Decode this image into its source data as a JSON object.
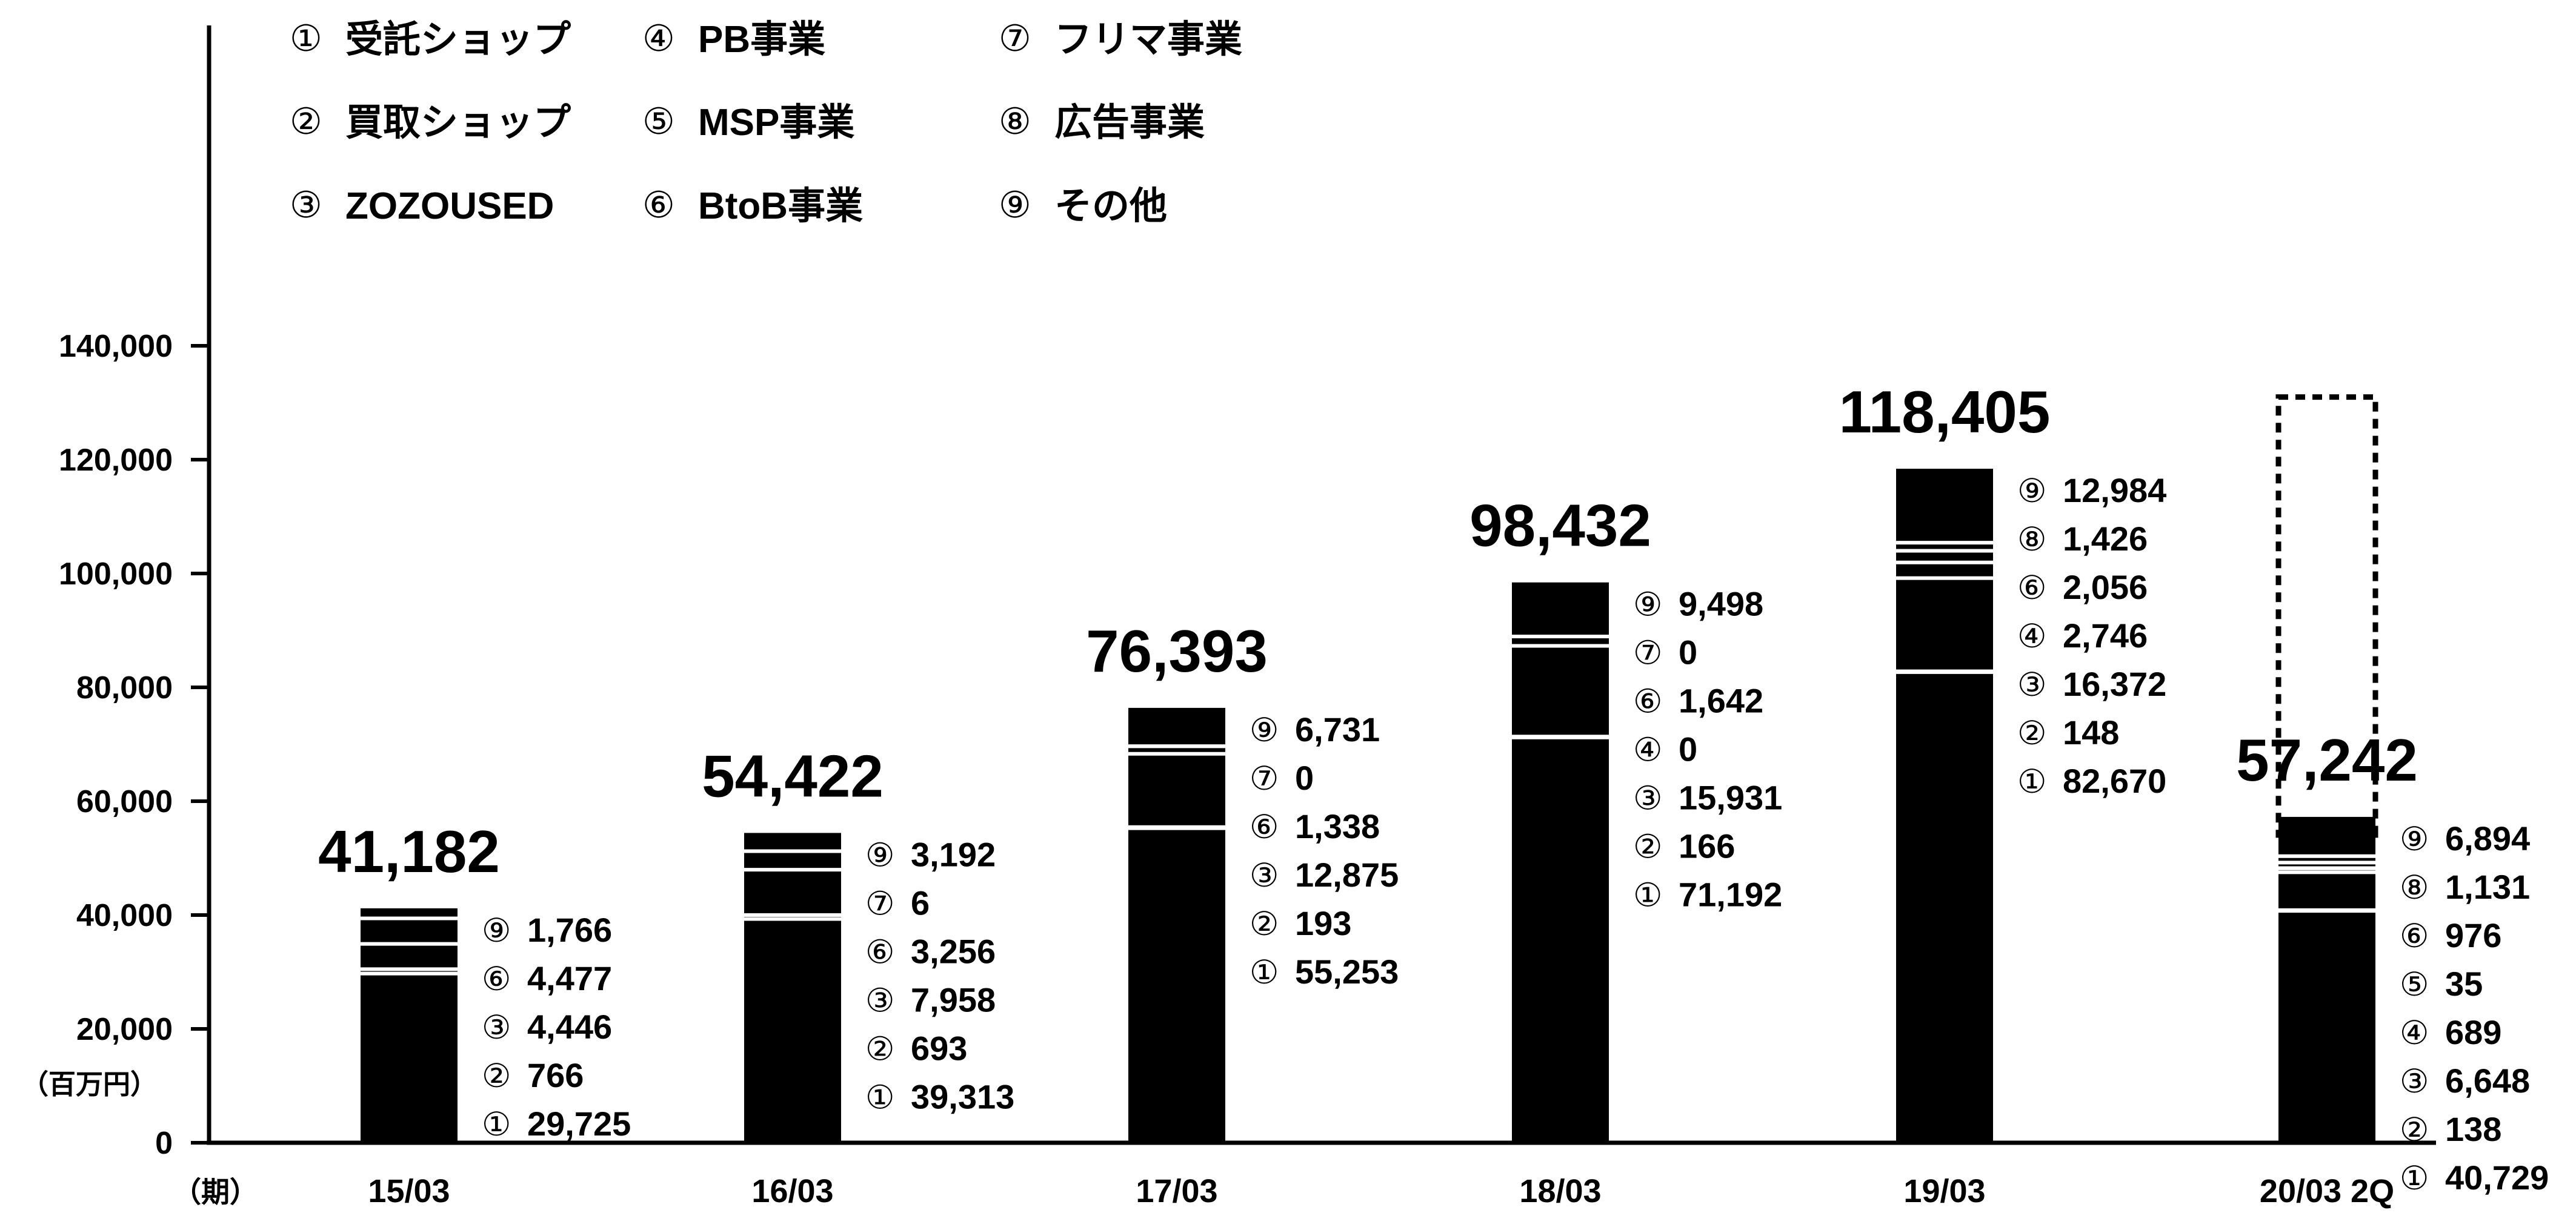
{
  "chart_data": {
    "type": "bar",
    "stacked": true,
    "unit_label": "（百万円）",
    "x_axis_label": "（期）",
    "ylim": [
      0,
      140000
    ],
    "y_ticks": [
      {
        "value": 0,
        "label": "0"
      },
      {
        "value": 20000,
        "label": "20,000"
      },
      {
        "value": 40000,
        "label": "40,000"
      },
      {
        "value": 60000,
        "label": "60,000"
      },
      {
        "value": 80000,
        "label": "80,000"
      },
      {
        "value": 100000,
        "label": "100,000"
      },
      {
        "value": 120000,
        "label": "120,000"
      },
      {
        "value": 140000,
        "label": "140,000"
      }
    ],
    "legend": [
      {
        "num": "①",
        "label": "受託ショップ"
      },
      {
        "num": "②",
        "label": "買取ショップ"
      },
      {
        "num": "③",
        "label": "ZOZOUSED"
      },
      {
        "num": "④",
        "label": "PB事業"
      },
      {
        "num": "⑤",
        "label": "MSP事業"
      },
      {
        "num": "⑥",
        "label": "BtoB事業"
      },
      {
        "num": "⑦",
        "label": "フリマ事業"
      },
      {
        "num": "⑧",
        "label": "広告事業"
      },
      {
        "num": "⑨",
        "label": "その他"
      }
    ],
    "bars": [
      {
        "category": "15/03",
        "total_label": "41,182",
        "total": 41182,
        "segments": [
          {
            "num": "①",
            "value": 29725,
            "label": "29,725"
          },
          {
            "num": "②",
            "value": 766,
            "label": "766"
          },
          {
            "num": "③",
            "value": 4446,
            "label": "4,446"
          },
          {
            "num": "⑥",
            "value": 4477,
            "label": "4,477"
          },
          {
            "num": "⑨",
            "value": 1766,
            "label": "1,766"
          }
        ]
      },
      {
        "category": "16/03",
        "total_label": "54,422",
        "total": 54422,
        "segments": [
          {
            "num": "①",
            "value": 39313,
            "label": "39,313"
          },
          {
            "num": "②",
            "value": 693,
            "label": "693"
          },
          {
            "num": "③",
            "value": 7958,
            "label": "7,958"
          },
          {
            "num": "⑥",
            "value": 3256,
            "label": "3,256"
          },
          {
            "num": "⑦",
            "value": 6,
            "label": "6"
          },
          {
            "num": "⑨",
            "value": 3192,
            "label": "3,192"
          }
        ]
      },
      {
        "category": "17/03",
        "total_label": "76,393",
        "total": 76393,
        "segments": [
          {
            "num": "①",
            "value": 55253,
            "label": "55,253"
          },
          {
            "num": "②",
            "value": 193,
            "label": "193"
          },
          {
            "num": "③",
            "value": 12875,
            "label": "12,875"
          },
          {
            "num": "⑥",
            "value": 1338,
            "label": "1,338"
          },
          {
            "num": "⑦",
            "value": 0,
            "label": "0"
          },
          {
            "num": "⑨",
            "value": 6731,
            "label": "6,731"
          }
        ]
      },
      {
        "category": "18/03",
        "total_label": "98,432",
        "total": 98432,
        "segments": [
          {
            "num": "①",
            "value": 71192,
            "label": "71,192"
          },
          {
            "num": "②",
            "value": 166,
            "label": "166"
          },
          {
            "num": "③",
            "value": 15931,
            "label": "15,931"
          },
          {
            "num": "④",
            "value": 0,
            "label": "0"
          },
          {
            "num": "⑥",
            "value": 1642,
            "label": "1,642"
          },
          {
            "num": "⑦",
            "value": 0,
            "label": "0"
          },
          {
            "num": "⑨",
            "value": 9498,
            "label": "9,498"
          }
        ]
      },
      {
        "category": "19/03",
        "total_label": "118,405",
        "total": 118405,
        "segments": [
          {
            "num": "①",
            "value": 82670,
            "label": "82,670"
          },
          {
            "num": "②",
            "value": 148,
            "label": "148"
          },
          {
            "num": "③",
            "value": 16372,
            "label": "16,372"
          },
          {
            "num": "④",
            "value": 2746,
            "label": "2,746"
          },
          {
            "num": "⑥",
            "value": 2056,
            "label": "2,056"
          },
          {
            "num": "⑧",
            "value": 1426,
            "label": "1,426"
          },
          {
            "num": "⑨",
            "value": 12984,
            "label": "12,984"
          }
        ]
      },
      {
        "category": "20/03 2Q",
        "total_label": "57,242",
        "total": 57242,
        "dotted_outline_to": 131000,
        "segments": [
          {
            "num": "①",
            "value": 40729,
            "label": "40,729"
          },
          {
            "num": "②",
            "value": 138,
            "label": "138"
          },
          {
            "num": "③",
            "value": 6648,
            "label": "6,648"
          },
          {
            "num": "④",
            "value": 689,
            "label": "689"
          },
          {
            "num": "⑤",
            "value": 35,
            "label": "35"
          },
          {
            "num": "⑥",
            "value": 976,
            "label": "976"
          },
          {
            "num": "⑧",
            "value": 1131,
            "label": "1,131"
          },
          {
            "num": "⑨",
            "value": 6894,
            "label": "6,894"
          }
        ]
      }
    ]
  }
}
